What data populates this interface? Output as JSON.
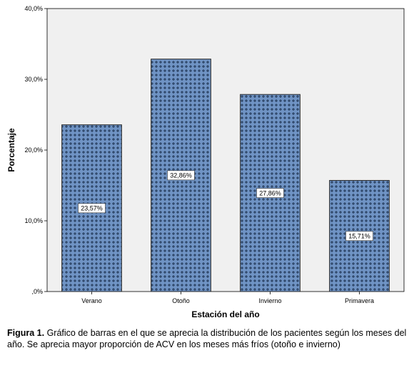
{
  "chart_data": {
    "type": "bar",
    "categories": [
      "Verano",
      "Otoño",
      "Invierno",
      "Primavera"
    ],
    "values": [
      23.57,
      32.86,
      27.86,
      15.71
    ],
    "data_labels": [
      "23,57%",
      "32,86%",
      "27,86%",
      "15,71%"
    ],
    "y_ticks": [
      0,
      10,
      20,
      30,
      40
    ],
    "y_tick_labels": [
      ",0%",
      "10,0%",
      "20,0%",
      "30,0%",
      "40,0%"
    ],
    "ylim": [
      0,
      40
    ],
    "xlabel": "Estación del año",
    "ylabel": "Porcentaje",
    "grid": false,
    "legend": "none",
    "colors": {
      "bar_fill": "#6f93c4",
      "bar_pattern": "#1f3553",
      "bar_edge": "#2a2a2a",
      "plot_background": "#f0f0f0"
    }
  },
  "caption": {
    "label": "Figura 1.",
    "text": " Gráfico de barras en el que se aprecia la distribución de los pacientes según los meses del año. Se aprecia mayor proporción de ACV en los meses más fríos (otoño e invierno)"
  }
}
